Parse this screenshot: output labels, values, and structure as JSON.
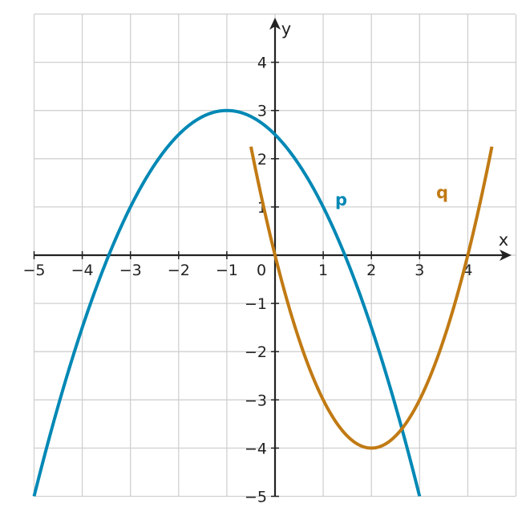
{
  "chart_data": {
    "type": "line",
    "title": "",
    "xlabel": "x",
    "ylabel": "y",
    "xlim": [
      -5,
      5
    ],
    "ylim": [
      -5,
      5
    ],
    "x_ticks": [
      -5,
      -4,
      -3,
      -2,
      -1,
      0,
      1,
      2,
      3,
      4
    ],
    "y_ticks": [
      -5,
      -4,
      -3,
      -2,
      -1,
      1,
      2,
      3,
      4
    ],
    "x_tick_labels": [
      "−5",
      "−4",
      "−3",
      "−2",
      "−1",
      "0",
      "1",
      "2",
      "3",
      "4"
    ],
    "y_tick_labels": [
      "−5",
      "−4",
      "−3",
      "−2",
      "−1",
      "1",
      "2",
      "3",
      "4"
    ],
    "grid": true,
    "series": [
      {
        "name": "p",
        "color": "#0088b5",
        "equation": "y = -0.5(x + 1)^2 + 3",
        "x_domain": [
          -5,
          3
        ],
        "points": [
          [
            -5,
            -5
          ],
          [
            -4,
            -1.5
          ],
          [
            -3,
            1
          ],
          [
            -2,
            2.5
          ],
          [
            -1,
            3
          ],
          [
            0,
            2.5
          ],
          [
            1,
            1
          ],
          [
            2,
            -1.5
          ],
          [
            3,
            -5
          ]
        ]
      },
      {
        "name": "q",
        "color": "#c17a13",
        "equation": "y = (x - 2)^2 - 4",
        "x_domain": [
          -0.5,
          4.5
        ],
        "points": [
          [
            -0.5,
            2.25
          ],
          [
            0,
            0
          ],
          [
            1,
            -3
          ],
          [
            2,
            -4
          ],
          [
            3,
            -3
          ],
          [
            4,
            0
          ],
          [
            4.5,
            2.25
          ]
        ]
      }
    ]
  }
}
